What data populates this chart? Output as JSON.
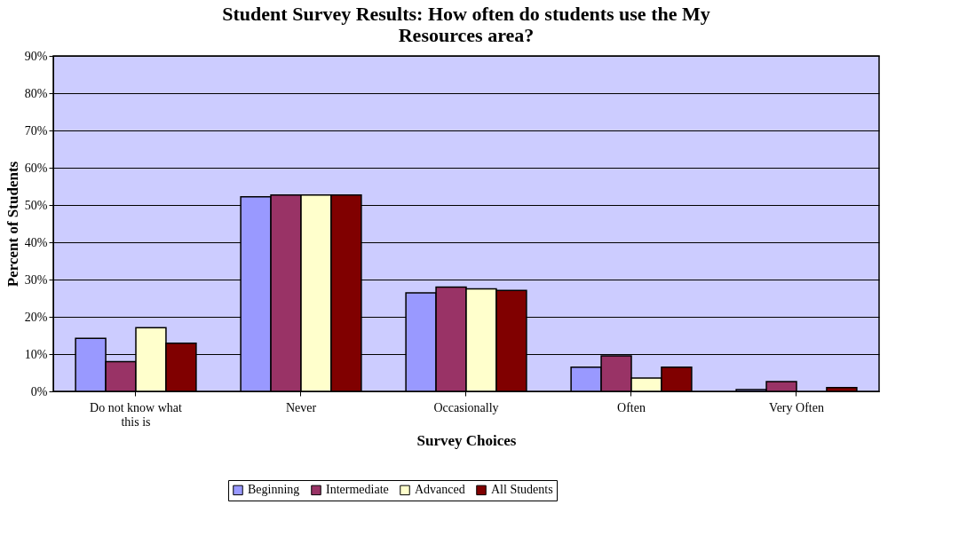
{
  "chart_data": {
    "type": "bar",
    "title": "Student Survey Results: How often do students use the My Resources area?",
    "xlabel": "Survey Choices",
    "ylabel": "Percent of Students",
    "categories": [
      "Do not know what this is",
      "Never",
      "Occasionally",
      "Often",
      "Very Often"
    ],
    "series": [
      {
        "name": "Beginning",
        "color": "#9999ff",
        "values": [
          14.2,
          52.2,
          26.4,
          6.5,
          0.5
        ]
      },
      {
        "name": "Intermediate",
        "color": "#993366",
        "values": [
          8.0,
          52.7,
          28.0,
          9.5,
          2.6
        ]
      },
      {
        "name": "Advanced",
        "color": "#ffffcc",
        "values": [
          17.1,
          52.7,
          27.5,
          3.6,
          null
        ]
      },
      {
        "name": "All Students",
        "color": "#800000",
        "values": [
          12.9,
          52.7,
          27.1,
          6.5,
          1.0
        ]
      }
    ],
    "ylim": [
      0,
      90
    ],
    "yticks": [
      {
        "value": 0,
        "label": "0%"
      },
      {
        "value": 10,
        "label": "10%"
      },
      {
        "value": 20,
        "label": "20%"
      },
      {
        "value": 30,
        "label": "30%"
      },
      {
        "value": 40,
        "label": "40%"
      },
      {
        "value": 50,
        "label": "50%"
      },
      {
        "value": 60,
        "label": "60%"
      },
      {
        "value": 70,
        "label": "70%"
      },
      {
        "value": 80,
        "label": "80%"
      },
      {
        "value": 90,
        "label": "90%"
      }
    ],
    "grid": "y",
    "legend": "bottom"
  }
}
